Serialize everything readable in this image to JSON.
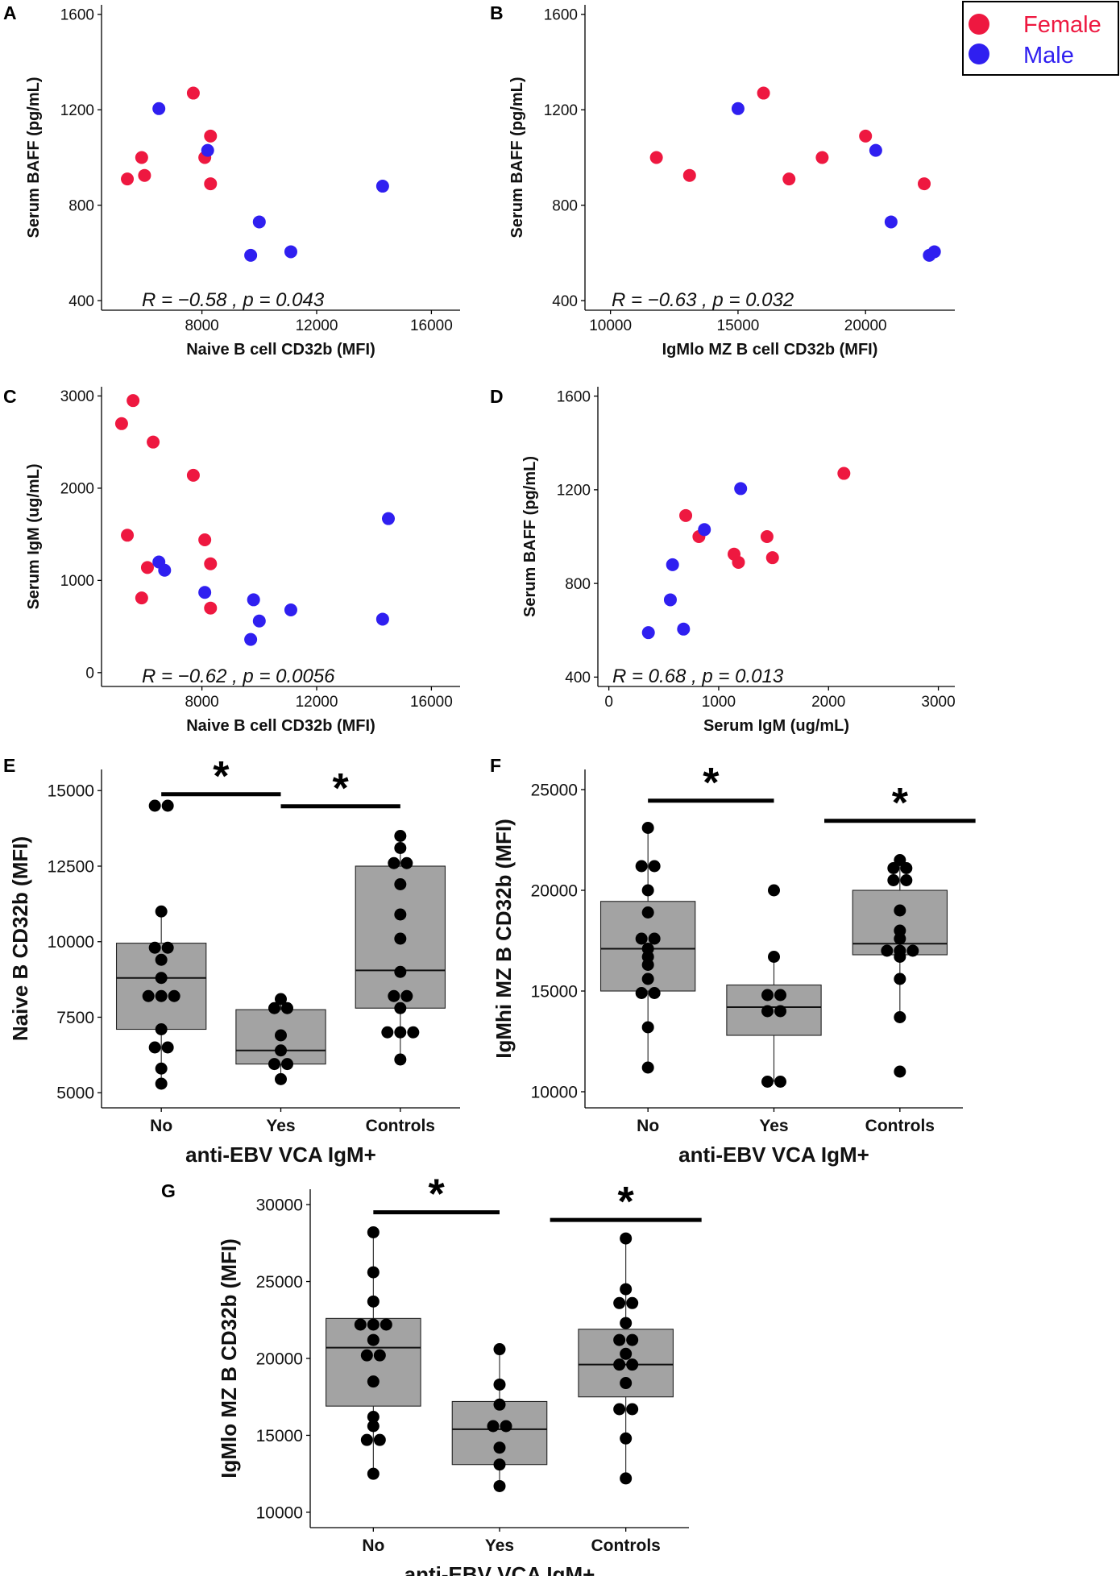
{
  "legend": {
    "items": [
      {
        "label": "Female",
        "color": "#ee1840"
      },
      {
        "label": "Male",
        "color": "#2f1ff0"
      }
    ]
  },
  "colors": {
    "female": "#ee1840",
    "male": "#2f1ff0",
    "box_fill": "#a3a3a3",
    "point": "#000000"
  },
  "chart_data": [
    {
      "panel": "A",
      "type": "scatter",
      "xlabel": "Naive B cell CD32b (MFI)",
      "ylabel": "Serum BAFF (pg/mL)",
      "xlim": [
        4500,
        17000
      ],
      "ylim": [
        360,
        1640
      ],
      "xticks": [
        8000,
        12000,
        16000
      ],
      "yticks": [
        400,
        800,
        1200,
        1600
      ],
      "stat": {
        "r": "R = −0.58 , ",
        "p": "p = 0.043"
      },
      "points": [
        {
          "x": 5400,
          "y": 910,
          "sex": "Female"
        },
        {
          "x": 5900,
          "y": 1000,
          "sex": "Female"
        },
        {
          "x": 6000,
          "y": 925,
          "sex": "Female"
        },
        {
          "x": 7700,
          "y": 1270,
          "sex": "Female"
        },
        {
          "x": 8100,
          "y": 1000,
          "sex": "Female"
        },
        {
          "x": 8300,
          "y": 1090,
          "sex": "Female"
        },
        {
          "x": 8300,
          "y": 890,
          "sex": "Female"
        },
        {
          "x": 6500,
          "y": 1205,
          "sex": "Male"
        },
        {
          "x": 8200,
          "y": 1030,
          "sex": "Male"
        },
        {
          "x": 10000,
          "y": 730,
          "sex": "Male"
        },
        {
          "x": 9700,
          "y": 590,
          "sex": "Male"
        },
        {
          "x": 11100,
          "y": 605,
          "sex": "Male"
        },
        {
          "x": 14300,
          "y": 880,
          "sex": "Male"
        }
      ]
    },
    {
      "panel": "B",
      "type": "scatter",
      "xlabel": "IgMlo MZ B cell CD32b (MFI)",
      "ylabel": "Serum BAFF (pg/mL)",
      "xlim": [
        9000,
        23500
      ],
      "ylim": [
        360,
        1640
      ],
      "xticks": [
        10000,
        15000,
        20000
      ],
      "yticks": [
        400,
        800,
        1200,
        1600
      ],
      "stat": {
        "r": "R = −0.63 , ",
        "p": "p = 0.032"
      },
      "points": [
        {
          "x": 11800,
          "y": 1000,
          "sex": "Female"
        },
        {
          "x": 13100,
          "y": 925,
          "sex": "Female"
        },
        {
          "x": 16000,
          "y": 1270,
          "sex": "Female"
        },
        {
          "x": 17000,
          "y": 910,
          "sex": "Female"
        },
        {
          "x": 18300,
          "y": 1000,
          "sex": "Female"
        },
        {
          "x": 20000,
          "y": 1090,
          "sex": "Female"
        },
        {
          "x": 22300,
          "y": 890,
          "sex": "Female"
        },
        {
          "x": 15000,
          "y": 1205,
          "sex": "Male"
        },
        {
          "x": 20400,
          "y": 1030,
          "sex": "Male"
        },
        {
          "x": 21000,
          "y": 730,
          "sex": "Male"
        },
        {
          "x": 22500,
          "y": 590,
          "sex": "Male"
        },
        {
          "x": 22700,
          "y": 605,
          "sex": "Male"
        }
      ]
    },
    {
      "panel": "C",
      "type": "scatter",
      "xlabel": "Naive B cell CD32b (MFI)",
      "ylabel": "Serum IgM (ug/mL)",
      "xlim": [
        4500,
        17000
      ],
      "ylim": [
        -150,
        3100
      ],
      "xticks": [
        8000,
        12000,
        16000
      ],
      "yticks": [
        0,
        1000,
        2000,
        3000
      ],
      "stat": {
        "r": "R = −0.62 , ",
        "p": "p = 0.0056"
      },
      "points": [
        {
          "x": 5200,
          "y": 2700,
          "sex": "Female"
        },
        {
          "x": 5600,
          "y": 2950,
          "sex": "Female"
        },
        {
          "x": 6300,
          "y": 2500,
          "sex": "Female"
        },
        {
          "x": 7700,
          "y": 2140,
          "sex": "Female"
        },
        {
          "x": 5400,
          "y": 1490,
          "sex": "Female"
        },
        {
          "x": 8100,
          "y": 1440,
          "sex": "Female"
        },
        {
          "x": 8300,
          "y": 1180,
          "sex": "Female"
        },
        {
          "x": 6100,
          "y": 1140,
          "sex": "Female"
        },
        {
          "x": 5900,
          "y": 810,
          "sex": "Female"
        },
        {
          "x": 8300,
          "y": 700,
          "sex": "Female"
        },
        {
          "x": 6500,
          "y": 1200,
          "sex": "Male"
        },
        {
          "x": 6700,
          "y": 1110,
          "sex": "Male"
        },
        {
          "x": 8100,
          "y": 870,
          "sex": "Male"
        },
        {
          "x": 9800,
          "y": 790,
          "sex": "Male"
        },
        {
          "x": 10000,
          "y": 560,
          "sex": "Male"
        },
        {
          "x": 9700,
          "y": 360,
          "sex": "Male"
        },
        {
          "x": 11100,
          "y": 680,
          "sex": "Male"
        },
        {
          "x": 14300,
          "y": 580,
          "sex": "Male"
        },
        {
          "x": 14500,
          "y": 1670,
          "sex": "Male"
        }
      ]
    },
    {
      "panel": "D",
      "type": "scatter",
      "xlabel": "Serum IgM (ug/mL)",
      "ylabel": "Serum BAFF (pg/mL)",
      "xlim": [
        -100,
        3150
      ],
      "ylim": [
        360,
        1640
      ],
      "xticks": [
        0,
        1000,
        2000,
        3000
      ],
      "yticks": [
        400,
        800,
        1200,
        1600
      ],
      "stat": {
        "r": "R = 0.68 , ",
        "p": "p = 0.013"
      },
      "points": [
        {
          "x": 700,
          "y": 1090,
          "sex": "Female"
        },
        {
          "x": 820,
          "y": 1000,
          "sex": "Female"
        },
        {
          "x": 1140,
          "y": 925,
          "sex": "Female"
        },
        {
          "x": 1180,
          "y": 890,
          "sex": "Female"
        },
        {
          "x": 1440,
          "y": 1000,
          "sex": "Female"
        },
        {
          "x": 1490,
          "y": 910,
          "sex": "Female"
        },
        {
          "x": 2140,
          "y": 1270,
          "sex": "Female"
        },
        {
          "x": 360,
          "y": 590,
          "sex": "Male"
        },
        {
          "x": 560,
          "y": 730,
          "sex": "Male"
        },
        {
          "x": 580,
          "y": 880,
          "sex": "Male"
        },
        {
          "x": 680,
          "y": 605,
          "sex": "Male"
        },
        {
          "x": 870,
          "y": 1030,
          "sex": "Male"
        },
        {
          "x": 1200,
          "y": 1205,
          "sex": "Male"
        }
      ]
    },
    {
      "panel": "E",
      "type": "box",
      "xlabel": "anti-EBV VCA IgM+",
      "ylabel": "Naive B CD32b (MFI)",
      "categories": [
        "No",
        "Yes",
        "Controls"
      ],
      "ylim": [
        4500,
        15700
      ],
      "yticks": [
        5000,
        7500,
        10000,
        12500,
        15000
      ],
      "boxes": [
        {
          "q1": 7100,
          "median": 8800,
          "q3": 9950,
          "whisker_low": 5300,
          "whisker_high": 11000,
          "points": [
            14500,
            14500,
            11000,
            9800,
            9800,
            9400,
            8800,
            8200,
            8200,
            8200,
            7100,
            6500,
            6500,
            5800,
            5300
          ]
        },
        {
          "q1": 5950,
          "median": 6400,
          "q3": 7750,
          "whisker_low": 5450,
          "whisker_high": 8100,
          "points": [
            8100,
            7800,
            7800,
            6900,
            6400,
            5950,
            5950,
            5450
          ]
        },
        {
          "q1": 7800,
          "median": 9050,
          "q3": 12500,
          "whisker_low": 6100,
          "whisker_high": 13500,
          "points": [
            13500,
            13100,
            12600,
            12600,
            11900,
            10900,
            10100,
            9000,
            8200,
            8200,
            7800,
            7000,
            7000,
            7000,
            6100
          ]
        }
      ],
      "significance": [
        {
          "from": 0,
          "to": 1,
          "label": "*",
          "y": 14880
        },
        {
          "from": 1,
          "to": 2,
          "label": "*",
          "y": 14480
        }
      ]
    },
    {
      "panel": "F",
      "type": "box",
      "xlabel": "anti-EBV VCA IgM+",
      "ylabel": "IgMhi MZ B CD32b (MFI)",
      "categories": [
        "No",
        "Yes",
        "Controls"
      ],
      "ylim": [
        9200,
        26000
      ],
      "yticks": [
        10000,
        15000,
        20000,
        25000
      ],
      "boxes": [
        {
          "q1": 15000,
          "median": 17100,
          "q3": 19450,
          "whisker_low": 11200,
          "whisker_high": 23100,
          "points": [
            23100,
            21200,
            21200,
            20000,
            18900,
            17600,
            17600,
            17100,
            16700,
            16300,
            15600,
            14900,
            14900,
            13200,
            11200
          ]
        },
        {
          "q1": 12800,
          "median": 14200,
          "q3": 15300,
          "whisker_low": 10500,
          "whisker_high": 16700,
          "points": [
            20000,
            16700,
            14800,
            14800,
            14000,
            14000,
            10500,
            10500
          ]
        },
        {
          "q1": 16800,
          "median": 17350,
          "q3": 20000,
          "whisker_low": 13700,
          "whisker_high": 21500,
          "points": [
            21500,
            21100,
            21100,
            20500,
            20500,
            19000,
            18000,
            17600,
            17000,
            17000,
            17000,
            16700,
            15600,
            13700,
            11000
          ]
        }
      ],
      "significance": [
        {
          "from": 0,
          "to": 1,
          "label": "*",
          "y": 24450
        },
        {
          "from": 2,
          "to": 2,
          "label": "*",
          "y": 23450
        }
      ]
    },
    {
      "panel": "G",
      "type": "box",
      "xlabel": "anti-EBV VCA IgM+",
      "ylabel": "IgMlo MZ B CD32b (MFI)",
      "categories": [
        "No",
        "Yes",
        "Controls"
      ],
      "ylim": [
        9000,
        31000
      ],
      "yticks": [
        10000,
        15000,
        20000,
        25000,
        30000
      ],
      "boxes": [
        {
          "q1": 16900,
          "median": 20700,
          "q3": 22600,
          "whisker_low": 12500,
          "whisker_high": 28200,
          "points": [
            28200,
            25600,
            23700,
            22200,
            22200,
            22200,
            21200,
            20200,
            20200,
            18500,
            16200,
            15600,
            14700,
            14700,
            12500
          ]
        },
        {
          "q1": 13100,
          "median": 15400,
          "q3": 17200,
          "whisker_low": 11700,
          "whisker_high": 20600,
          "points": [
            20600,
            18300,
            17000,
            15600,
            15600,
            14200,
            13100,
            11700
          ]
        },
        {
          "q1": 17500,
          "median": 19600,
          "q3": 21900,
          "whisker_low": 12200,
          "whisker_high": 27800,
          "points": [
            27800,
            24500,
            23600,
            23600,
            22300,
            21200,
            21200,
            20300,
            19600,
            19600,
            18400,
            16700,
            16700,
            14800,
            12200
          ]
        }
      ],
      "significance": [
        {
          "from": 0,
          "to": 1,
          "label": "*",
          "y": 29500
        },
        {
          "from": 2,
          "to": 2,
          "label": "*",
          "y": 29000
        }
      ]
    }
  ]
}
